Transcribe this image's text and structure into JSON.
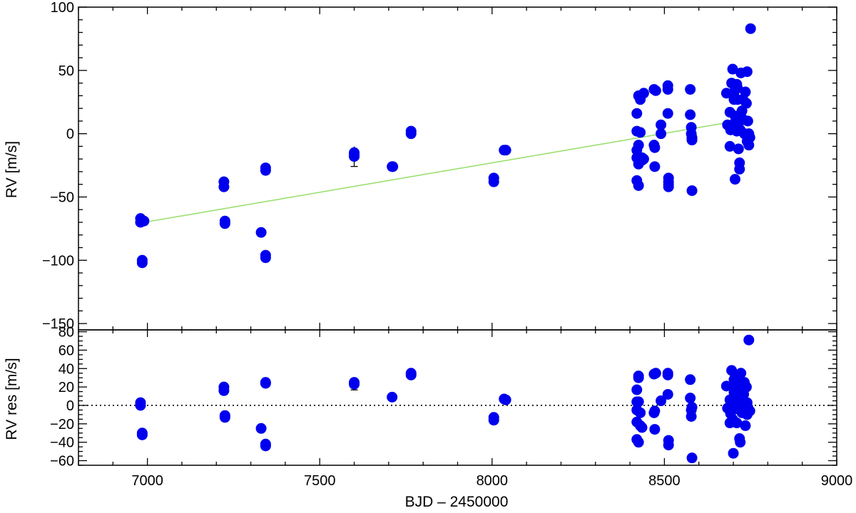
{
  "chart_data": [
    {
      "type": "scatter",
      "title": "",
      "xlabel": "",
      "ylabel": "RV [m/s]",
      "xlim": [
        6800,
        9000
      ],
      "ylim": [
        -155,
        100
      ],
      "yticks_major": [
        -150,
        -100,
        -50,
        0,
        50,
        100
      ],
      "grid": false,
      "marker_color": "#0000ee",
      "trend_color": "#9be070",
      "trend_line": {
        "x": [
          6980,
          8720
        ],
        "y": [
          -70.5,
          10.5
        ]
      },
      "points": {
        "x": [
          6980,
          6980,
          6985,
          6985,
          6990,
          7222,
          7222,
          7225,
          7225,
          7330,
          7343,
          7343,
          7343,
          7343,
          7600,
          7600,
          7600,
          7710,
          7712,
          7765,
          7765,
          8005,
          8005,
          8035,
          8040,
          8420,
          8420,
          8420,
          8420,
          8420,
          8425,
          8425,
          8425,
          8425,
          8430,
          8430,
          8435,
          8435,
          8440,
          8440,
          8470,
          8470,
          8472,
          8472,
          8475,
          8490,
          8490,
          8510,
          8510,
          8510,
          8512,
          8512,
          8512,
          8512,
          8575,
          8575,
          8578,
          8578,
          8580,
          8580,
          8580,
          8580,
          8680,
          8683,
          8690,
          8690,
          8692,
          8695,
          8698,
          8700,
          8702,
          8702,
          8705,
          8705,
          8705,
          8710,
          8710,
          8710,
          8712,
          8712,
          8715,
          8715,
          8718,
          8718,
          8720,
          8722,
          8725,
          8728,
          8730,
          8732,
          8735,
          8738,
          8740,
          8740,
          8742,
          8745,
          8745,
          8748,
          8750
        ],
        "y": [
          -67,
          -70,
          -100,
          -102,
          -69,
          -38,
          -42,
          -69,
          -71,
          -78,
          -27,
          -29,
          -96,
          -98,
          -15,
          -17,
          -18,
          -26,
          -26,
          2,
          0,
          -35,
          -38,
          -13,
          -13,
          16,
          2,
          -13,
          -19,
          -37,
          -41,
          -9,
          -24,
          30,
          27,
          1,
          -21,
          -19,
          32,
          -20,
          35,
          -9,
          -11,
          -26,
          34,
          7,
          0,
          38,
          35,
          16,
          -35,
          -38,
          -42,
          -40,
          35,
          15,
          0,
          5,
          -45,
          -4,
          -3,
          -5,
          32,
          7,
          -10,
          17,
          3,
          40,
          51,
          5,
          27,
          33,
          -36,
          14,
          9,
          39,
          6,
          2,
          36,
          27,
          -12,
          9,
          -23,
          -28,
          3,
          48,
          18,
          27,
          11,
          0,
          33,
          24,
          49,
          -6,
          10,
          -9,
          0,
          -3,
          83
        ],
        "yerr_note": ""
      }
    },
    {
      "type": "scatter",
      "title": "",
      "xlabel": "BJD – 2450000",
      "ylabel": "RV res [m/s]",
      "xlim": [
        6800,
        9000
      ],
      "ylim": [
        -65,
        82
      ],
      "xticks_major": [
        7000,
        7500,
        8000,
        8500,
        9000
      ],
      "yticks_major": [
        -60,
        -40,
        -20,
        0,
        20,
        40,
        60,
        80
      ],
      "grid": false,
      "zero_line": "dotted",
      "marker_color": "#0000ee",
      "points": {
        "x": [
          6980,
          6980,
          6985,
          6985,
          7222,
          7222,
          7225,
          7225,
          7330,
          7343,
          7343,
          7343,
          7343,
          7600,
          7600,
          7710,
          7765,
          7765,
          8005,
          8005,
          8035,
          8040,
          8420,
          8420,
          8420,
          8420,
          8420,
          8425,
          8425,
          8425,
          8425,
          8430,
          8430,
          8435,
          8470,
          8470,
          8472,
          8472,
          8475,
          8490,
          8510,
          8510,
          8510,
          8512,
          8512,
          8575,
          8575,
          8578,
          8578,
          8580,
          8580,
          8680,
          8683,
          8690,
          8690,
          8692,
          8695,
          8698,
          8700,
          8702,
          8702,
          8705,
          8705,
          8705,
          8710,
          8710,
          8712,
          8712,
          8715,
          8715,
          8718,
          8718,
          8720,
          8722,
          8725,
          8728,
          8730,
          8732,
          8735,
          8738,
          8740,
          8740,
          8742,
          8745,
          8748
        ],
        "y": [
          3,
          0,
          -30,
          -32,
          20,
          16,
          -11,
          -13,
          -25,
          25,
          24,
          -42,
          -44,
          25,
          23,
          9,
          35,
          33,
          -13,
          -16,
          7,
          6,
          17,
          4,
          -5,
          -18,
          -37,
          -40,
          32,
          30,
          4,
          -8,
          -22,
          -24,
          34,
          -8,
          -6,
          -26,
          35,
          5,
          35,
          33,
          12,
          -38,
          -43,
          28,
          8,
          -5,
          -12,
          -57,
          -2,
          21,
          -3,
          -19,
          6,
          -9,
          38,
          -15,
          -52,
          28,
          14,
          4,
          33,
          23,
          -19,
          10,
          30,
          -2,
          -4,
          16,
          5,
          -36,
          -40,
          35,
          -8,
          0,
          12,
          25,
          -22,
          20,
          -10,
          3,
          -2,
          71,
          -6
        ]
      }
    }
  ]
}
